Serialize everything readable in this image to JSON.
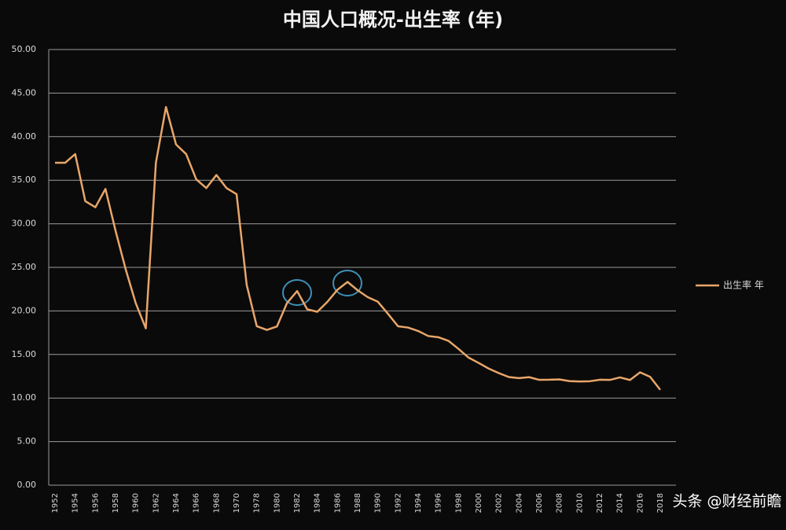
{
  "chart_data": {
    "type": "line",
    "title": "中国人口概况-出生率 (年)",
    "categories": [
      "1952",
      null,
      "1954",
      null,
      "1956",
      null,
      "1958",
      null,
      "1960",
      null,
      "1962",
      null,
      "1964",
      null,
      "1966",
      null,
      "1968",
      null,
      "1970",
      null,
      "1978",
      null,
      "1980",
      null,
      "1982",
      null,
      "1984",
      null,
      "1986",
      null,
      "1988",
      null,
      "1990",
      null,
      "1992",
      null,
      "1994",
      null,
      "1996",
      null,
      "1998",
      null,
      "2000",
      null,
      "2002",
      null,
      "2004",
      null,
      "2006",
      null,
      "2008",
      null,
      "2010",
      null,
      "2012",
      null,
      "2014",
      null,
      "2016",
      null,
      "2018"
    ],
    "series": [
      {
        "name": "出生率 年",
        "color": "#e8a66a",
        "values": [
          37.0,
          37.0,
          38.0,
          32.6,
          31.9,
          34.0,
          29.2,
          24.8,
          20.9,
          18.0,
          37.0,
          43.4,
          39.1,
          38.0,
          35.1,
          34.1,
          35.6,
          34.1,
          33.4,
          23.0,
          18.25,
          17.82,
          18.21,
          20.91,
          22.28,
          20.19,
          19.9,
          21.04,
          22.43,
          23.33,
          22.37,
          21.58,
          21.06,
          19.68,
          18.24,
          18.09,
          17.7,
          17.12,
          16.98,
          16.57,
          15.64,
          14.64,
          14.03,
          13.38,
          12.86,
          12.41,
          12.29,
          12.4,
          12.09,
          12.1,
          12.14,
          11.95,
          11.9,
          11.93,
          12.1,
          12.08,
          12.37,
          12.07,
          12.95,
          12.43,
          10.94
        ]
      }
    ],
    "ylim": [
      0,
      50
    ],
    "yticks": [
      {
        "value": 0,
        "label": "0.00"
      },
      {
        "value": 5,
        "label": "5.00"
      },
      {
        "value": 10,
        "label": "10.00"
      },
      {
        "value": 15,
        "label": "15.00"
      },
      {
        "value": 20,
        "label": "20.00"
      },
      {
        "value": 25,
        "label": "25.00"
      },
      {
        "value": 30,
        "label": "30.00"
      },
      {
        "value": 35,
        "label": "35.00"
      },
      {
        "value": 40,
        "label": "40.00"
      },
      {
        "value": 45,
        "label": "45.00"
      },
      {
        "value": 50,
        "label": "50.00"
      }
    ],
    "grid": true,
    "legend": "right",
    "watermark": "头条 @财经前瞻"
  }
}
